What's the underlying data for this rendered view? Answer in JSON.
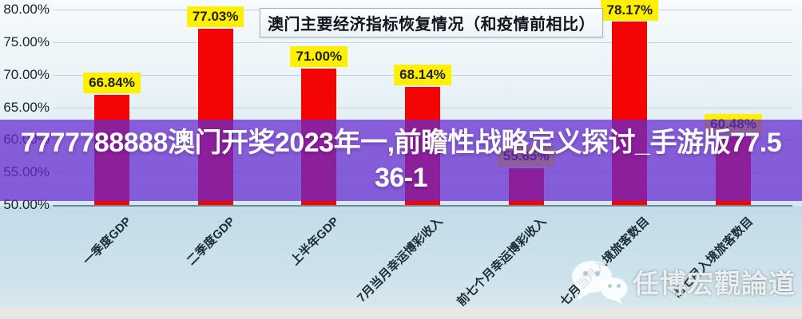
{
  "chart_data": {
    "type": "bar",
    "title": "澳门主要经济指标恢复情况（和疫情前相比）",
    "categories": [
      "一季度GDP",
      "二季度GDP",
      "上半年GDP",
      "7月当月幸运博彩收入",
      "前七个月幸运博彩收入",
      "七月当月入境旅客数目",
      "前七月入境旅客数目"
    ],
    "values": [
      66.84,
      77.03,
      71.0,
      68.14,
      55.65,
      78.17,
      60.48
    ],
    "value_labels": [
      "66.84%",
      "77.03%",
      "71.00%",
      "68.14%",
      "55.65%",
      "78.17%",
      "60.48%"
    ],
    "ylim": [
      50,
      80
    ],
    "ytick_values": [
      80,
      75,
      70,
      65,
      60,
      55,
      50
    ],
    "ytick_labels": [
      "80.00%",
      "75.00%",
      "70.00%",
      "65.00%",
      "60.00%",
      "55.00%",
      "50.00%"
    ],
    "grid": true,
    "legend_position": "none",
    "colors": {
      "bar": "#f50404",
      "value_label_bg": "#fff000",
      "value_label_text": "#1f1f1f",
      "axis_text": "#17222c"
    }
  },
  "overlay_banner": {
    "line1": "7777788888澳门开奖2023年一,前瞻性战略定义探讨_手游版77.5",
    "line2": "36-1",
    "full_text": "7777788888澳门开奖2023年一,前瞻性战略定义探讨_手游版77.536-1",
    "bg_color": "rgba(103,42,208,0.74)",
    "text_color": "#ffffff"
  },
  "watermark": {
    "icon": "wechat-icon",
    "text": "任博宏觀論道"
  }
}
